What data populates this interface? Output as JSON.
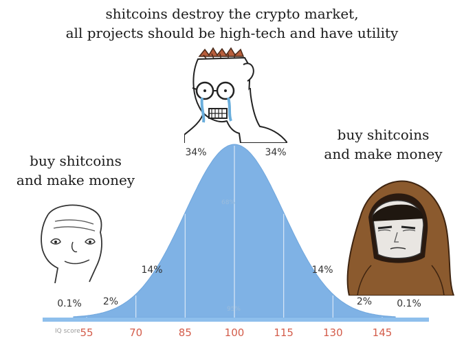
{
  "captions": {
    "top_line1": "shitcoins destroy the crypto market,",
    "top_line2": "all projects should be high-tech and have utility",
    "left_line1": "buy shitcoins",
    "left_line2": "and make money",
    "right_line1": "buy shitcoins",
    "right_line2": "and make money"
  },
  "characters": {
    "left": "simple-wojak-face",
    "middle": "crying-glasses-nerd-wojak",
    "right": "hooded-monk-face"
  },
  "colors": {
    "curve_fill": "#7fb2e5",
    "curve_edge": "#6fa6dd",
    "axis_bar": "#8ebfec",
    "tick_label": "#d35c4a",
    "percent_label": "#333333"
  },
  "chart_data": {
    "type": "area",
    "title": "",
    "xlabel": "IQ score",
    "ylabel": "",
    "x_ticks": [
      55,
      70,
      85,
      100,
      115,
      130,
      145
    ],
    "xlim": [
      51,
      149
    ],
    "mean": 100,
    "sd": 15,
    "segment_labels": {
      "far_left": "0.1%",
      "left_tail": "2%",
      "left_mid": "14%",
      "left_center": "34%",
      "right_center": "34%",
      "right_mid": "14%",
      "right_tail": "2%",
      "far_right": "0.1%",
      "center_68": "68%",
      "center_95": "95%"
    }
  }
}
